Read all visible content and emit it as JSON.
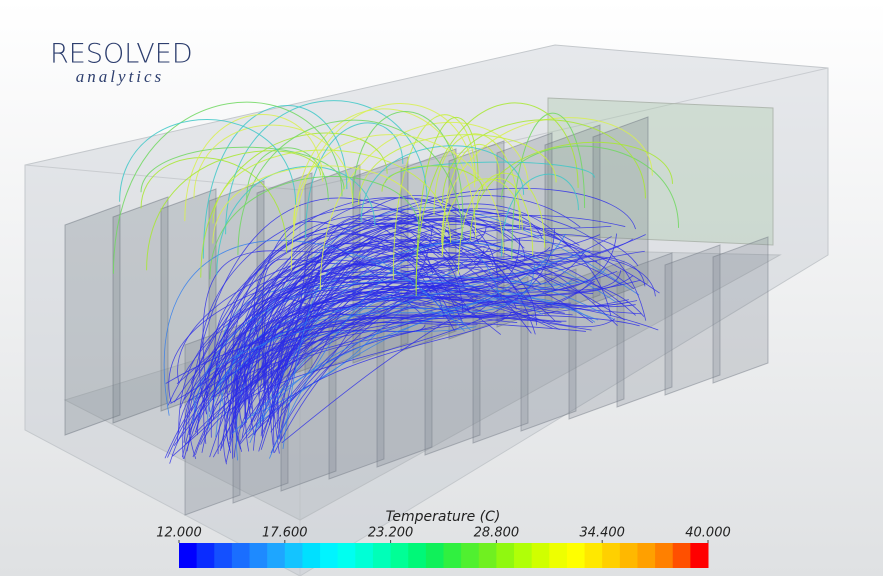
{
  "logo": {
    "name": "RESOLVED",
    "tagline": "analytics"
  },
  "colorbar": {
    "title": "Temperature (C)",
    "range": [
      12,
      40
    ],
    "ticks": [
      {
        "value": 12,
        "label": "12.000"
      },
      {
        "value": 17.6,
        "label": "17.600"
      },
      {
        "value": 23.2,
        "label": "23.200"
      },
      {
        "value": 28.8,
        "label": "28.800"
      },
      {
        "value": 34.4,
        "label": "34.400"
      },
      {
        "value": 40,
        "label": "40.000"
      }
    ],
    "colors": [
      "#0000ff",
      "#0a2cff",
      "#1450ff",
      "#1a6eff",
      "#1e8aff",
      "#1ea6ff",
      "#14c4ff",
      "#00e0ff",
      "#00f4ff",
      "#00fff0",
      "#00ffd6",
      "#00ffb8",
      "#00ff96",
      "#00f878",
      "#10f05a",
      "#30f040",
      "#50f030",
      "#70f020",
      "#90f810",
      "#b0ff08",
      "#d0ff00",
      "#eeff00",
      "#ffff00",
      "#ffe800",
      "#ffd000",
      "#ffb800",
      "#ffa000",
      "#ff8000",
      "#ff5000",
      "#ff0000"
    ]
  }
}
